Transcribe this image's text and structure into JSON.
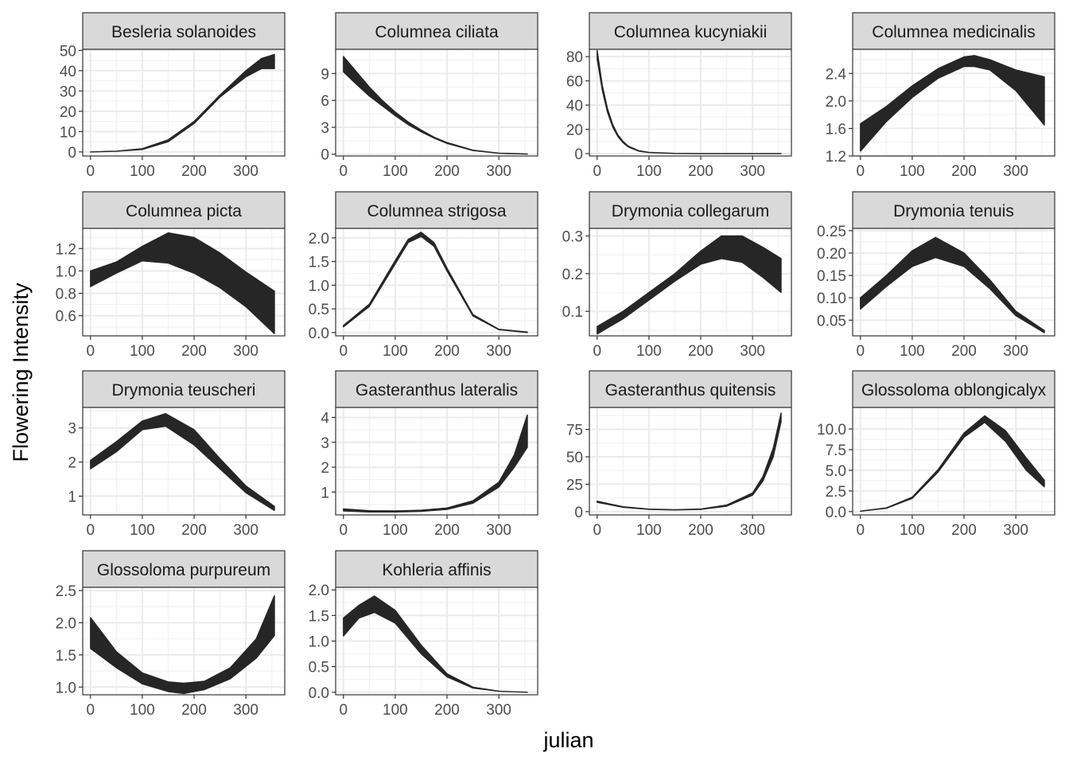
{
  "chart_data": {
    "type": "area",
    "description_kind": "faceted ribbon (confidence band) plots",
    "xlabel": "julian",
    "ylabel": "Flowering Intensity",
    "x_ticks": [
      0,
      100,
      200,
      300
    ],
    "xlim": [
      -15,
      375
    ],
    "grid": true,
    "facets": [
      {
        "title": "Besleria solanoides",
        "ylim": [
          -2,
          50.5
        ],
        "y_ticks": [
          0,
          10,
          20,
          30,
          40,
          50
        ],
        "y_tick_labels": [
          "0",
          "10",
          "20",
          "30",
          "40",
          "50"
        ],
        "x": [
          0,
          50,
          100,
          150,
          200,
          250,
          300,
          330,
          355
        ],
        "lower": [
          0,
          0.3,
          1.2,
          5,
          14,
          27,
          37,
          41,
          41
        ],
        "upper": [
          0,
          0.4,
          1.6,
          6,
          15,
          28,
          40,
          46,
          48
        ]
      },
      {
        "title": "Columnea ciliata",
        "ylim": [
          -0.2,
          11.7
        ],
        "y_ticks": [
          0,
          3,
          6,
          9
        ],
        "y_tick_labels": [
          "0",
          "3",
          "6",
          "9"
        ],
        "x": [
          0,
          25,
          50,
          75,
          100,
          125,
          150,
          175,
          200,
          250,
          300,
          355
        ],
        "lower": [
          9.2,
          7.8,
          6.5,
          5.4,
          4.3,
          3.3,
          2.5,
          1.8,
          1.2,
          0.4,
          0.1,
          0.02
        ],
        "upper": [
          10.9,
          9.2,
          7.5,
          6,
          4.7,
          3.6,
          2.7,
          1.9,
          1.3,
          0.45,
          0.12,
          0.03
        ]
      },
      {
        "title": "Columnea kucyniakii",
        "ylim": [
          -2,
          86
        ],
        "y_ticks": [
          0,
          20,
          40,
          60,
          80
        ],
        "y_tick_labels": [
          "0",
          "20",
          "40",
          "60",
          "80"
        ],
        "x": [
          0,
          10,
          20,
          30,
          40,
          50,
          60,
          80,
          100,
          150,
          200,
          250,
          300,
          355
        ],
        "lower": [
          78,
          52,
          34,
          22,
          14,
          9,
          5.5,
          2,
          0.8,
          0.1,
          0,
          0,
          0,
          0
        ],
        "upper": [
          85,
          56,
          37,
          24,
          15.5,
          10,
          6.2,
          2.4,
          1,
          0.15,
          0,
          0,
          0,
          0
        ]
      },
      {
        "title": "Columnea medicinalis",
        "ylim": [
          1.2,
          2.75
        ],
        "y_ticks": [
          1.2,
          1.6,
          2.0,
          2.4
        ],
        "y_tick_labels": [
          "1.2",
          "1.6",
          "2.0",
          "2.4"
        ],
        "x": [
          0,
          50,
          100,
          150,
          200,
          220,
          250,
          300,
          355
        ],
        "lower": [
          1.27,
          1.7,
          2.05,
          2.33,
          2.5,
          2.5,
          2.45,
          2.15,
          1.65
        ],
        "upper": [
          1.67,
          1.92,
          2.22,
          2.47,
          2.64,
          2.66,
          2.6,
          2.45,
          2.35
        ]
      },
      {
        "title": "Columnea picta",
        "ylim": [
          0.42,
          1.38
        ],
        "y_ticks": [
          0.6,
          0.8,
          1.0,
          1.2
        ],
        "y_tick_labels": [
          "0.6",
          "0.8",
          "1.0",
          "1.2"
        ],
        "x": [
          0,
          50,
          100,
          150,
          200,
          250,
          300,
          355
        ],
        "lower": [
          0.86,
          0.98,
          1.09,
          1.07,
          0.98,
          0.85,
          0.68,
          0.44
        ],
        "upper": [
          1.0,
          1.08,
          1.22,
          1.34,
          1.3,
          1.16,
          0.99,
          0.82
        ]
      },
      {
        "title": "Columnea strigosa",
        "ylim": [
          -0.07,
          2.2
        ],
        "y_ticks": [
          0,
          0.5,
          1.0,
          1.5,
          2.0
        ],
        "y_tick_labels": [
          "0.0",
          "0.5",
          "1.0",
          "1.5",
          "2.0"
        ],
        "x": [
          0,
          50,
          100,
          125,
          150,
          175,
          200,
          250,
          300,
          355
        ],
        "lower": [
          0.12,
          0.55,
          1.45,
          1.9,
          2.03,
          1.82,
          1.3,
          0.35,
          0.06,
          0.0
        ],
        "upper": [
          0.15,
          0.6,
          1.52,
          1.97,
          2.12,
          1.9,
          1.36,
          0.38,
          0.07,
          0.01
        ]
      },
      {
        "title": "Drymonia collegarum",
        "ylim": [
          0.035,
          0.32
        ],
        "y_ticks": [
          0.1,
          0.2,
          0.3
        ],
        "y_tick_labels": [
          "0.1",
          "0.2",
          "0.3"
        ],
        "x": [
          0,
          50,
          100,
          150,
          200,
          240,
          280,
          320,
          355
        ],
        "lower": [
          0.04,
          0.08,
          0.13,
          0.18,
          0.225,
          0.24,
          0.23,
          0.19,
          0.15
        ],
        "upper": [
          0.06,
          0.1,
          0.15,
          0.2,
          0.26,
          0.3,
          0.3,
          0.27,
          0.24
        ]
      },
      {
        "title": "Drymonia tenuis",
        "ylim": [
          0.015,
          0.255
        ],
        "y_ticks": [
          0.05,
          0.1,
          0.15,
          0.2,
          0.25
        ],
        "y_tick_labels": [
          "0.05",
          "0.10",
          "0.15",
          "0.20",
          "0.25"
        ],
        "x": [
          0,
          50,
          100,
          145,
          200,
          250,
          300,
          355
        ],
        "lower": [
          0.075,
          0.125,
          0.17,
          0.19,
          0.17,
          0.12,
          0.06,
          0.022
        ],
        "upper": [
          0.1,
          0.15,
          0.205,
          0.235,
          0.2,
          0.14,
          0.07,
          0.027
        ]
      },
      {
        "title": "Drymonia teuscheri",
        "ylim": [
          0.45,
          3.6
        ],
        "y_ticks": [
          1,
          2,
          3
        ],
        "y_tick_labels": [
          "1",
          "2",
          "3"
        ],
        "x": [
          0,
          50,
          100,
          145,
          200,
          250,
          300,
          355
        ],
        "lower": [
          1.8,
          2.3,
          2.95,
          3.05,
          2.5,
          1.8,
          1.1,
          0.58
        ],
        "upper": [
          2.05,
          2.6,
          3.2,
          3.42,
          2.95,
          2.1,
          1.3,
          0.7
        ]
      },
      {
        "title": "Gasteranthus lateralis",
        "ylim": [
          0.08,
          4.4
        ],
        "y_ticks": [
          1,
          2,
          3,
          4
        ],
        "y_tick_labels": [
          "1",
          "2",
          "3",
          "4"
        ],
        "x": [
          0,
          50,
          100,
          150,
          200,
          250,
          300,
          330,
          355
        ],
        "lower": [
          0.24,
          0.2,
          0.2,
          0.22,
          0.3,
          0.55,
          1.2,
          2.0,
          2.8
        ],
        "upper": [
          0.32,
          0.25,
          0.24,
          0.27,
          0.36,
          0.65,
          1.4,
          2.5,
          4.1
        ]
      },
      {
        "title": "Gasteranthus quitensis",
        "ylim": [
          -3,
          95
        ],
        "y_ticks": [
          0,
          25,
          50,
          75
        ],
        "y_tick_labels": [
          "0",
          "25",
          "50",
          "75"
        ],
        "x": [
          0,
          50,
          100,
          150,
          200,
          250,
          300,
          320,
          340,
          355
        ],
        "lower": [
          8.5,
          4,
          2,
          1.5,
          2,
          5,
          15,
          28,
          50,
          82
        ],
        "upper": [
          9.5,
          4.5,
          2.3,
          1.8,
          2.4,
          6,
          17,
          32,
          58,
          90
        ]
      },
      {
        "title": "Glossoloma oblongicalyx",
        "ylim": [
          -0.4,
          12.6
        ],
        "y_ticks": [
          0,
          2.5,
          5,
          7.5,
          10
        ],
        "y_tick_labels": [
          "0.0",
          "2.5",
          "5.0",
          "7.5",
          "10.0"
        ],
        "x": [
          0,
          50,
          100,
          150,
          200,
          240,
          280,
          320,
          355
        ],
        "lower": [
          0.05,
          0.4,
          1.6,
          4.8,
          9,
          10.8,
          8.5,
          5,
          3
        ],
        "upper": [
          0.06,
          0.45,
          1.75,
          5.1,
          9.5,
          11.6,
          9.8,
          6.5,
          3.8
        ]
      },
      {
        "title": "Glossoloma purpureum",
        "ylim": [
          0.88,
          2.55
        ],
        "y_ticks": [
          1.0,
          1.5,
          2.0,
          2.5
        ],
        "y_tick_labels": [
          "1.0",
          "1.5",
          "2.0",
          "2.5"
        ],
        "x": [
          0,
          50,
          100,
          150,
          180,
          220,
          270,
          320,
          355
        ],
        "lower": [
          1.6,
          1.3,
          1.05,
          0.93,
          0.9,
          0.96,
          1.13,
          1.45,
          1.8
        ],
        "upper": [
          2.08,
          1.55,
          1.22,
          1.08,
          1.06,
          1.09,
          1.3,
          1.75,
          2.42
        ]
      },
      {
        "title": "Kohleria affinis",
        "ylim": [
          -0.05,
          2.05
        ],
        "y_ticks": [
          0,
          0.5,
          1.0,
          1.5,
          2.0
        ],
        "y_tick_labels": [
          "0.0",
          "0.5",
          "1.0",
          "1.5",
          "2.0"
        ],
        "x": [
          0,
          30,
          60,
          100,
          150,
          200,
          250,
          300,
          355
        ],
        "lower": [
          1.1,
          1.45,
          1.56,
          1.35,
          0.75,
          0.3,
          0.08,
          0.02,
          0.0
        ],
        "upper": [
          1.45,
          1.7,
          1.88,
          1.6,
          0.92,
          0.36,
          0.1,
          0.02,
          0.0
        ]
      }
    ]
  }
}
